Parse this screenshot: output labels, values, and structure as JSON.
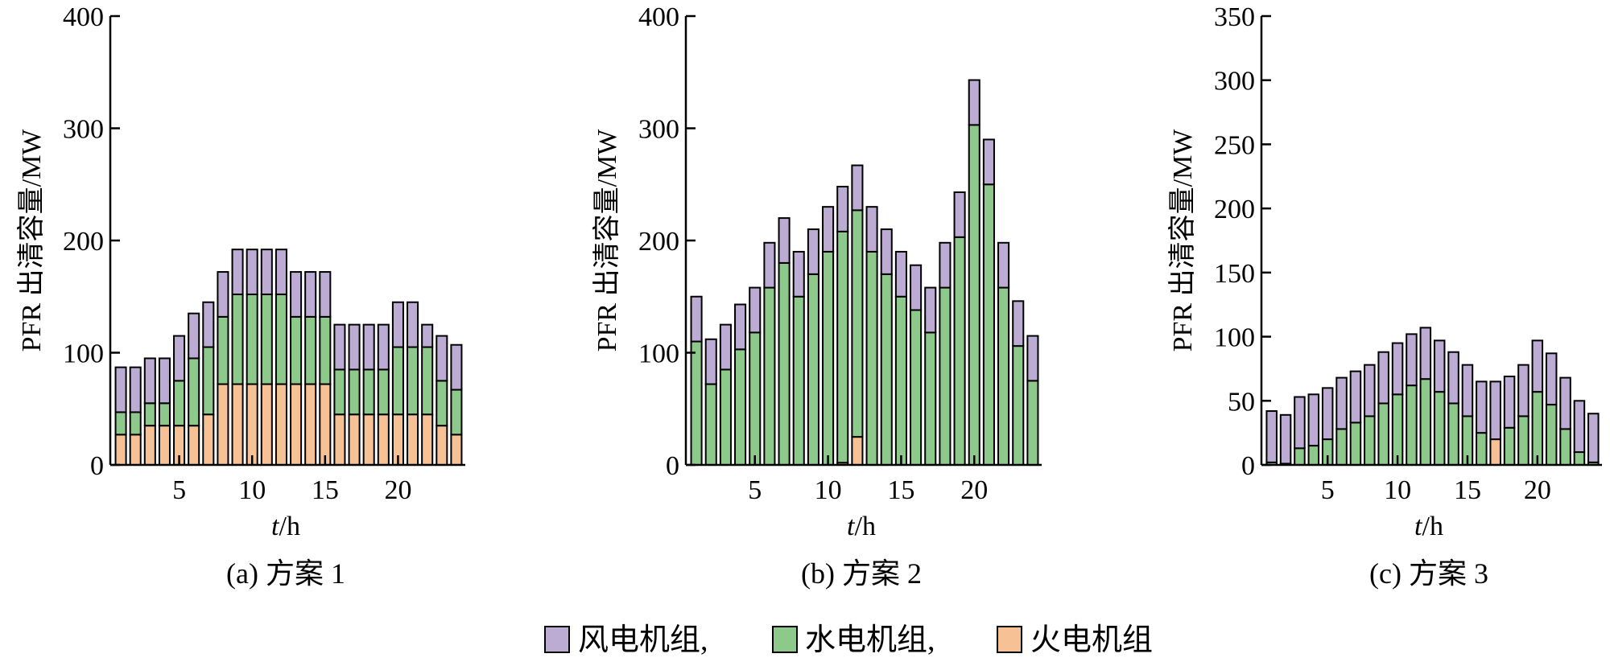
{
  "chart_data": [
    {
      "type": "bar",
      "stacked": true,
      "caption": "(a)  方案 1",
      "xlabel_italic": "t",
      "xlabel_unit": "/h",
      "ylabel": "PFR 出清容量/MW",
      "ylim": [
        0,
        400
      ],
      "yticks": [
        "0",
        "100",
        "200",
        "300",
        "400"
      ],
      "xticks": [
        "5",
        "10",
        "15",
        "20"
      ],
      "x": [
        1,
        2,
        3,
        4,
        5,
        6,
        7,
        8,
        9,
        10,
        11,
        12,
        13,
        14,
        15,
        16,
        17,
        18,
        19,
        20,
        21,
        22,
        23,
        24
      ],
      "series": [
        {
          "name": "火电机组",
          "values": [
            27,
            27,
            35,
            35,
            35,
            35,
            45,
            72,
            72,
            72,
            72,
            72,
            72,
            72,
            72,
            45,
            45,
            45,
            45,
            45,
            45,
            45,
            35,
            27
          ]
        },
        {
          "name": "水电机组",
          "values": [
            20,
            20,
            20,
            20,
            40,
            60,
            60,
            60,
            80,
            80,
            80,
            80,
            60,
            60,
            60,
            40,
            40,
            40,
            40,
            60,
            60,
            60,
            40,
            40
          ]
        },
        {
          "name": "风电机组",
          "values": [
            40,
            40,
            40,
            40,
            40,
            40,
            40,
            40,
            40,
            40,
            40,
            40,
            40,
            40,
            40,
            40,
            40,
            40,
            40,
            40,
            40,
            20,
            40,
            40
          ]
        }
      ]
    },
    {
      "type": "bar",
      "stacked": true,
      "caption": "(b)  方案 2",
      "xlabel_italic": "t",
      "xlabel_unit": "/h",
      "ylabel": "PFR 出清容量/MW",
      "ylim": [
        0,
        400
      ],
      "yticks": [
        "0",
        "100",
        "200",
        "300",
        "400"
      ],
      "xticks": [
        "5",
        "10",
        "15",
        "20"
      ],
      "x": [
        1,
        2,
        3,
        4,
        5,
        6,
        7,
        8,
        9,
        10,
        11,
        12,
        13,
        14,
        15,
        16,
        17,
        18,
        19,
        20,
        21,
        22,
        23,
        24
      ],
      "series": [
        {
          "name": "火电机组",
          "values": [
            0,
            0,
            0,
            0,
            0,
            0,
            0,
            0,
            0,
            0,
            2,
            25,
            0,
            0,
            0,
            0,
            0,
            0,
            0,
            0,
            0,
            0,
            0,
            0
          ]
        },
        {
          "name": "水电机组",
          "values": [
            110,
            72,
            85,
            103,
            118,
            158,
            180,
            150,
            170,
            190,
            206,
            202,
            190,
            170,
            150,
            138,
            118,
            158,
            203,
            303,
            250,
            158,
            106,
            75
          ]
        },
        {
          "name": "风电机组",
          "values": [
            40,
            40,
            40,
            40,
            40,
            40,
            40,
            40,
            40,
            40,
            40,
            40,
            40,
            40,
            40,
            40,
            40,
            40,
            40,
            40,
            40,
            40,
            40,
            40
          ]
        }
      ]
    },
    {
      "type": "bar",
      "stacked": true,
      "caption": "(c)  方案 3",
      "xlabel_italic": "t",
      "xlabel_unit": "/h",
      "ylabel": "PFR 出清容量/MW",
      "ylim": [
        0,
        350
      ],
      "yticks": [
        "0",
        "50",
        "100",
        "150",
        "200",
        "250",
        "300",
        "350"
      ],
      "xticks": [
        "5",
        "10",
        "15",
        "20"
      ],
      "x": [
        1,
        2,
        3,
        4,
        5,
        6,
        7,
        8,
        9,
        10,
        11,
        12,
        13,
        14,
        15,
        16,
        17,
        18,
        19,
        20,
        21,
        22,
        23,
        24
      ],
      "series": [
        {
          "name": "火电机组",
          "values": [
            0,
            0,
            0,
            0,
            0,
            0,
            0,
            0,
            0,
            0,
            0,
            0,
            0,
            0,
            0,
            0,
            20,
            0,
            0,
            0,
            0,
            0,
            0,
            0
          ]
        },
        {
          "name": "水电机组",
          "values": [
            2,
            1,
            13,
            15,
            20,
            28,
            33,
            38,
            48,
            55,
            62,
            67,
            57,
            48,
            38,
            25,
            0,
            29,
            38,
            57,
            47,
            28,
            10,
            2
          ]
        },
        {
          "name": "风电机组",
          "values": [
            40,
            38,
            40,
            40,
            40,
            40,
            40,
            40,
            40,
            40,
            40,
            40,
            40,
            40,
            40,
            40,
            45,
            40,
            40,
            40,
            40,
            40,
            40,
            38
          ]
        }
      ]
    }
  ],
  "legend": {
    "items": [
      {
        "label": "风电机组,",
        "color": "#bcabd2"
      },
      {
        "label": "水电机组,",
        "color": "#8dc98a"
      },
      {
        "label": "火电机组",
        "color": "#f6c295"
      }
    ]
  },
  "colors": {
    "火电机组": "#f6c295",
    "水电机组": "#8dc98a",
    "风电机组": "#bcabd2"
  }
}
